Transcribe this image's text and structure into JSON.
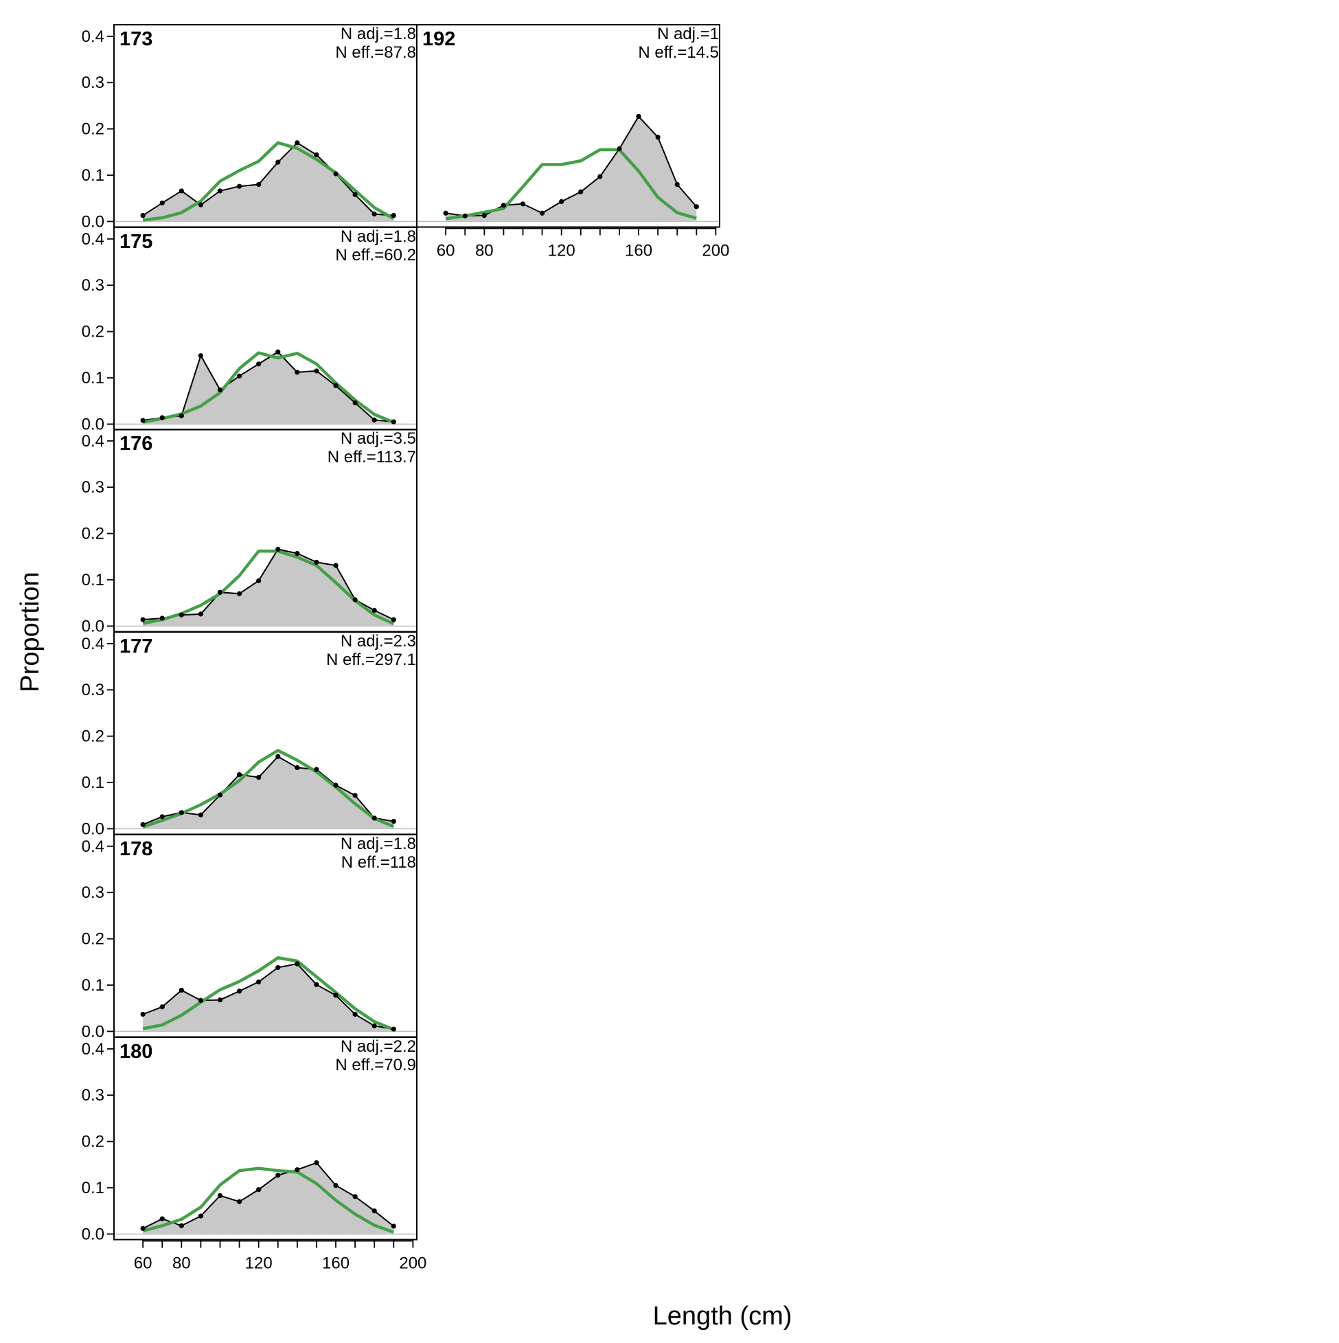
{
  "chart_data": {
    "type": "area",
    "xlabel": "Length (cm)",
    "ylabel": "Proportion",
    "xlim": [
      45,
      202
    ],
    "ylim": [
      -0.012,
      0.425
    ],
    "x_ticks": [
      60,
      80,
      120,
      160,
      200
    ],
    "y_ticks": [
      0.0,
      0.1,
      0.2,
      0.3,
      0.4
    ],
    "y_tick_labels": [
      "0.0",
      "0.1",
      "0.2",
      "0.3",
      "0.4"
    ],
    "colors": {
      "observed_fill": "#c8c8c8",
      "observed_line": "#000000",
      "expected_line": "#44a047",
      "zero_line": "#bdbdbd"
    },
    "x": [
      60,
      70,
      80,
      90,
      100,
      110,
      120,
      130,
      140,
      150,
      160,
      170,
      180,
      190
    ],
    "panels": [
      {
        "title": "173",
        "n_adj": "N adj.=1.8",
        "n_eff": "N eff.=87.8",
        "observed": [
          0.013,
          0.04,
          0.066,
          0.036,
          0.066,
          0.076,
          0.08,
          0.128,
          0.17,
          0.144,
          0.103,
          0.058,
          0.016,
          0.013
        ],
        "expected": [
          0.003,
          0.008,
          0.019,
          0.044,
          0.087,
          0.11,
          0.13,
          0.17,
          0.158,
          0.134,
          0.105,
          0.067,
          0.03,
          0.006
        ]
      },
      {
        "title": "192",
        "n_adj": "N adj.=1",
        "n_eff": "N eff.=14.5",
        "observed": [
          0.018,
          0.012,
          0.013,
          0.035,
          0.038,
          0.018,
          0.043,
          0.064,
          0.097,
          0.157,
          0.227,
          0.182,
          0.08,
          0.032
        ],
        "expected": [
          0.006,
          0.012,
          0.02,
          0.028,
          0.075,
          0.123,
          0.123,
          0.131,
          0.155,
          0.155,
          0.109,
          0.052,
          0.019,
          0.007
        ]
      },
      {
        "title": "175",
        "n_adj": "N adj.=1.8",
        "n_eff": "N eff.=60.2",
        "observed": [
          0.008,
          0.014,
          0.018,
          0.148,
          0.074,
          0.104,
          0.13,
          0.156,
          0.112,
          0.115,
          0.083,
          0.046,
          0.009,
          0.005
        ],
        "expected": [
          0.004,
          0.012,
          0.022,
          0.039,
          0.068,
          0.12,
          0.154,
          0.143,
          0.153,
          0.13,
          0.089,
          0.052,
          0.021,
          0.004
        ]
      },
      {
        "title": "176",
        "n_adj": "N adj.=3.5",
        "n_eff": "N eff.=113.7",
        "observed": [
          0.014,
          0.017,
          0.024,
          0.026,
          0.073,
          0.07,
          0.098,
          0.166,
          0.157,
          0.138,
          0.131,
          0.057,
          0.034,
          0.014
        ],
        "expected": [
          0.006,
          0.014,
          0.027,
          0.045,
          0.07,
          0.109,
          0.162,
          0.162,
          0.149,
          0.131,
          0.094,
          0.055,
          0.024,
          0.005
        ]
      },
      {
        "title": "177",
        "n_adj": "N adj.=2.3",
        "n_eff": "N eff.=297.1",
        "observed": [
          0.009,
          0.026,
          0.035,
          0.03,
          0.073,
          0.117,
          0.111,
          0.156,
          0.132,
          0.128,
          0.094,
          0.072,
          0.023,
          0.016
        ],
        "expected": [
          0.004,
          0.018,
          0.033,
          0.052,
          0.075,
          0.104,
          0.144,
          0.169,
          0.148,
          0.123,
          0.09,
          0.054,
          0.022,
          0.005
        ]
      },
      {
        "title": "178",
        "n_adj": "N adj.=1.8",
        "n_eff": "N eff.=118",
        "observed": [
          0.037,
          0.053,
          0.089,
          0.067,
          0.068,
          0.087,
          0.107,
          0.138,
          0.146,
          0.101,
          0.078,
          0.037,
          0.012,
          0.005
        ],
        "expected": [
          0.006,
          0.014,
          0.035,
          0.063,
          0.09,
          0.108,
          0.131,
          0.159,
          0.152,
          0.118,
          0.084,
          0.049,
          0.021,
          0.004
        ]
      },
      {
        "title": "180",
        "n_adj": "N adj.=2.2",
        "n_eff": "N eff.=70.9",
        "observed": [
          0.012,
          0.033,
          0.018,
          0.039,
          0.083,
          0.07,
          0.096,
          0.127,
          0.139,
          0.154,
          0.105,
          0.081,
          0.05,
          0.017
        ],
        "expected": [
          0.007,
          0.018,
          0.032,
          0.058,
          0.106,
          0.137,
          0.142,
          0.137,
          0.134,
          0.109,
          0.073,
          0.043,
          0.019,
          0.004
        ]
      }
    ]
  }
}
